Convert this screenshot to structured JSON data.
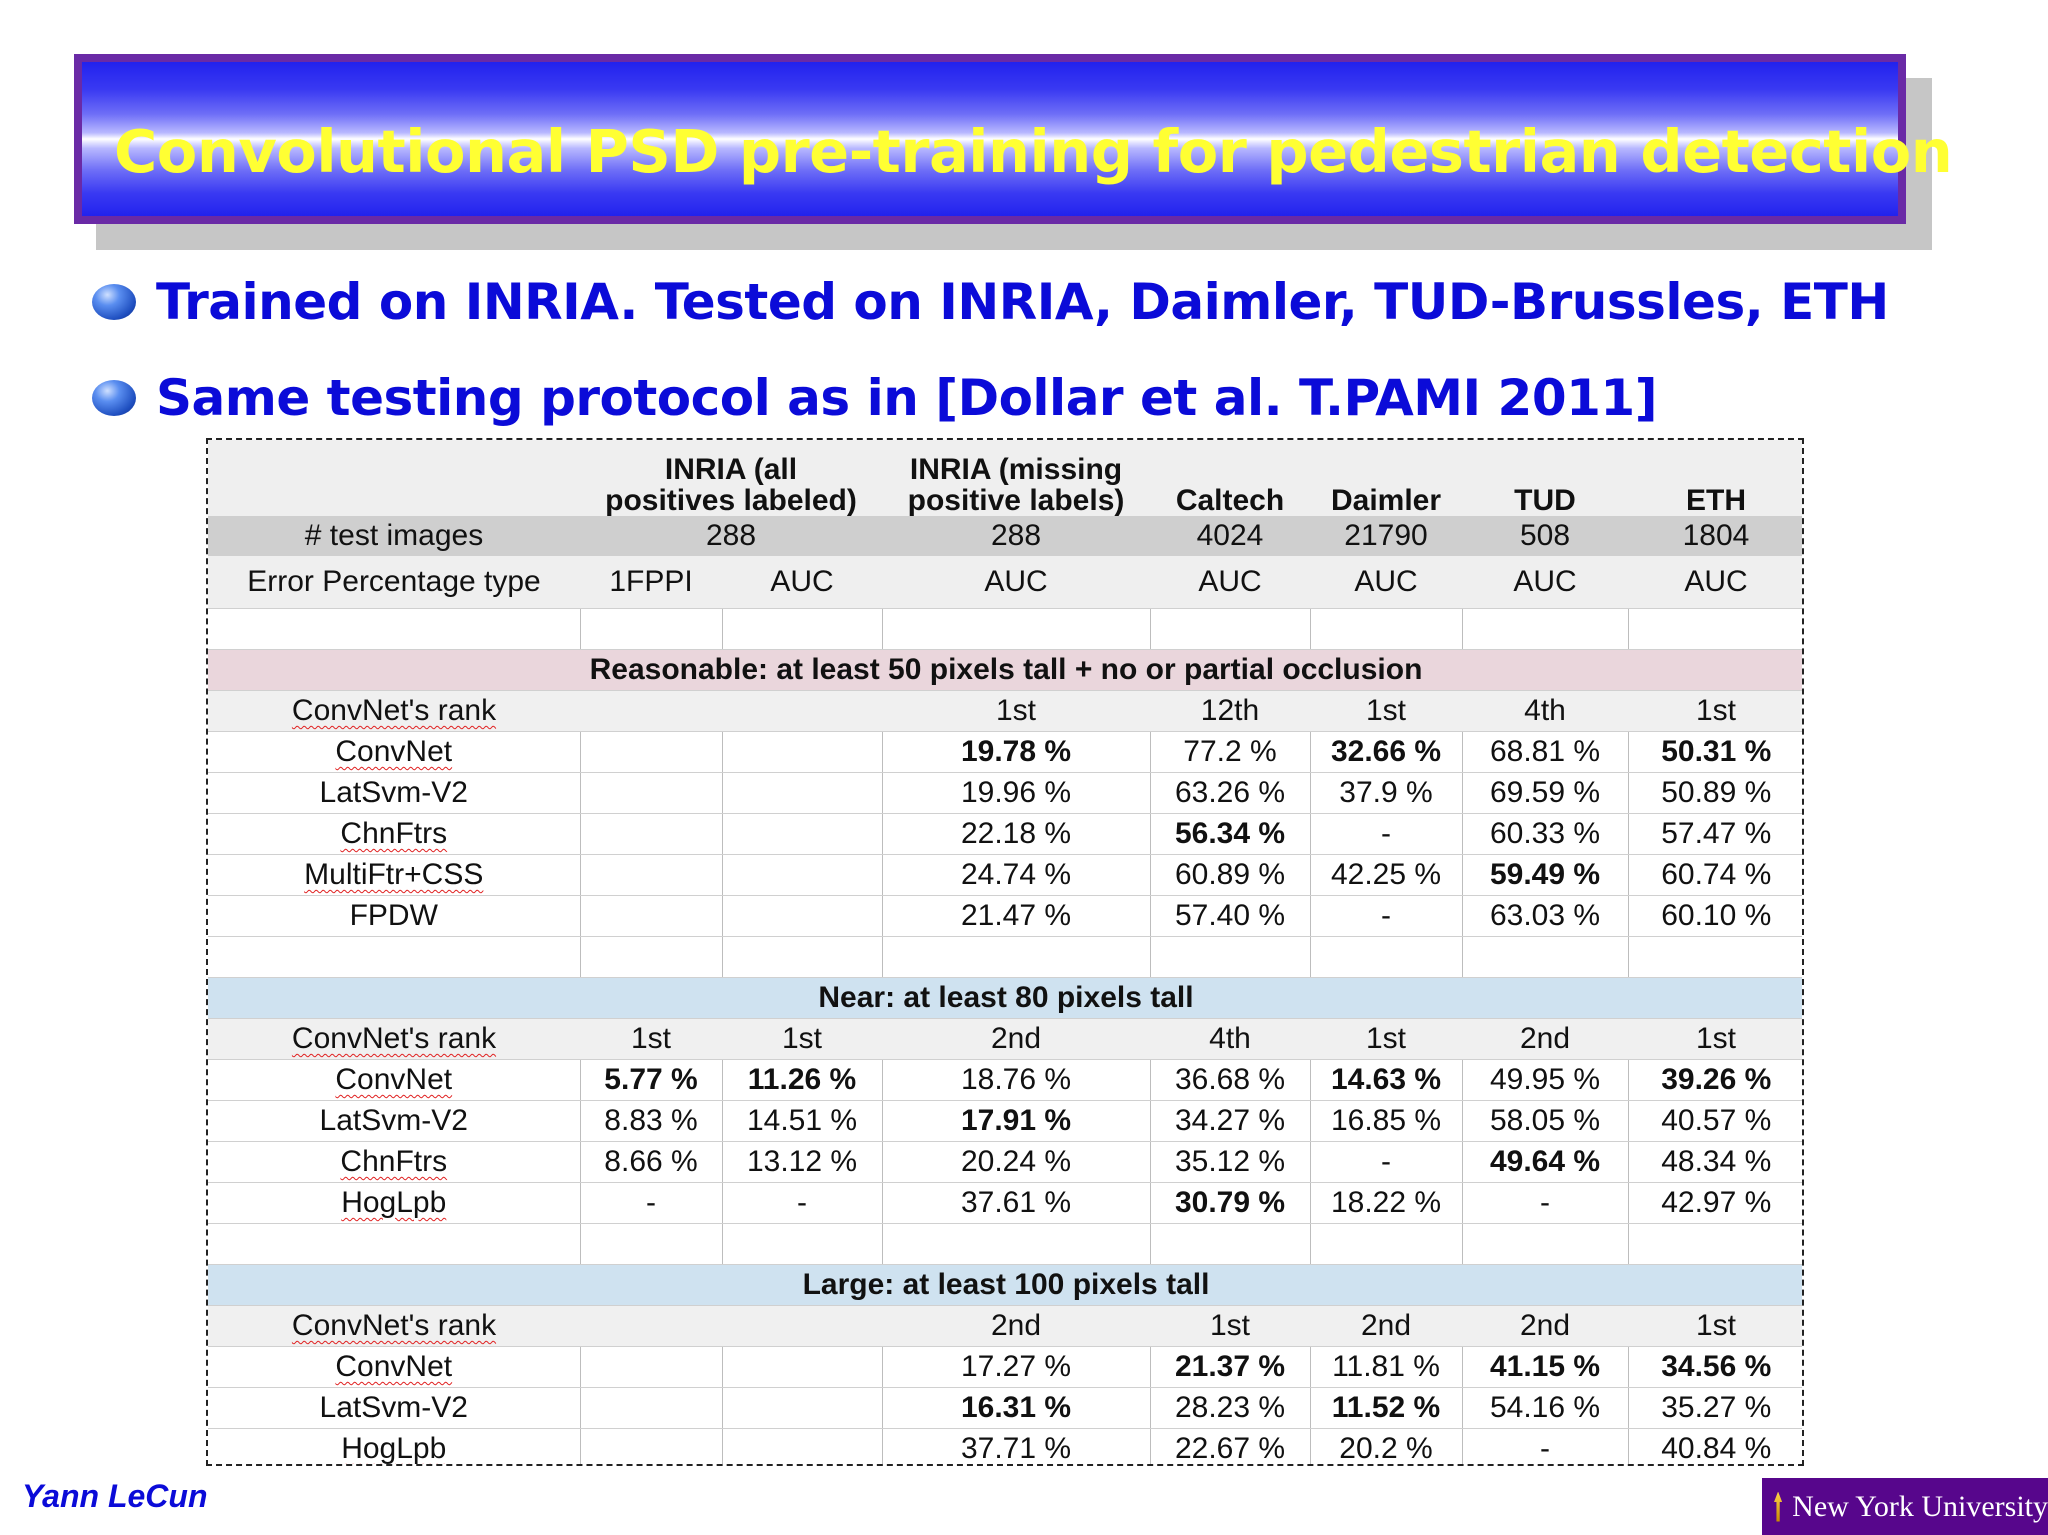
{
  "slide": {
    "title": "Convolutional PSD pre-training for pedestrian detection",
    "bullets": [
      "Trained on INRIA. Tested on INRIA, Daimler, TUD-Brussles, ETH",
      "Same testing protocol as in [Dollar et al. T.PAMI 2011]"
    ]
  },
  "table": {
    "headers": [
      "INRIA (all",
      "positives labeled)",
      "INRIA (missing",
      "positive labels)",
      "Caltech",
      "Daimler",
      "TUD",
      "ETH"
    ],
    "test_images": {
      "label": "# test images",
      "values": [
        "288",
        "288",
        "4024",
        "21790",
        "508",
        "1804"
      ]
    },
    "error_type": {
      "label": "Error Percentage type",
      "values": [
        "1FPPI",
        "AUC",
        "AUC",
        "AUC",
        "AUC",
        "AUC",
        "AUC"
      ]
    },
    "sections": [
      {
        "title": "Reasonable: at least 50 pixels tall + no or partial occlusion",
        "rank": [
          "ConvNet's rank",
          "",
          "",
          "1st",
          "12th",
          "1st",
          "4th",
          "1st"
        ],
        "rows": [
          [
            "ConvNet",
            "",
            "",
            "19.78 %",
            "77.2 %",
            "32.66 %",
            "68.81 %",
            "50.31 %"
          ],
          [
            "LatSvm-V2",
            "",
            "",
            "19.96 %",
            "63.26 %",
            "37.9 %",
            "69.59 %",
            "50.89 %"
          ],
          [
            "ChnFtrs",
            "",
            "",
            "22.18 %",
            "56.34 %",
            "-",
            "60.33 %",
            "57.47 %"
          ],
          [
            "MultiFtr+CSS",
            "",
            "",
            "24.74 %",
            "60.89 %",
            "42.25 %",
            "59.49 %",
            "60.74 %"
          ],
          [
            "FPDW",
            "",
            "",
            "21.47 %",
            "57.40 %",
            "-",
            "63.03 %",
            "60.10 %"
          ]
        ]
      },
      {
        "title": "Near: at least 80 pixels tall",
        "rank": [
          "ConvNet's rank",
          "1st",
          "1st",
          "2nd",
          "4th",
          "1st",
          "2nd",
          "1st"
        ],
        "rows": [
          [
            "ConvNet",
            "5.77 %",
            "11.26 %",
            "18.76 %",
            "36.68 %",
            "14.63 %",
            "49.95 %",
            "39.26 %"
          ],
          [
            "LatSvm-V2",
            "8.83 %",
            "14.51 %",
            "17.91 %",
            "34.27 %",
            "16.85 %",
            "58.05 %",
            "40.57 %"
          ],
          [
            "ChnFtrs",
            "8.66 %",
            "13.12 %",
            "20.24 %",
            "35.12 %",
            "-",
            "49.64 %",
            "48.34 %"
          ],
          [
            "HogLpb",
            "-",
            "-",
            "37.61 %",
            "30.79 %",
            "18.22 %",
            "-",
            "42.97 %"
          ]
        ]
      },
      {
        "title": "Large: at least 100 pixels tall",
        "rank": [
          "ConvNet's rank",
          "",
          "",
          "2nd",
          "1st",
          "2nd",
          "2nd",
          "1st"
        ],
        "rows": [
          [
            "ConvNet",
            "",
            "",
            "17.27 %",
            "21.37 %",
            "11.81 %",
            "41.15 %",
            "34.56 %"
          ],
          [
            "LatSvm-V2",
            "",
            "",
            "16.31 %",
            "28.23 %",
            "11.52 %",
            "54.16 %",
            "35.27 %"
          ],
          [
            "HogLpb",
            "",
            "",
            "37.71 %",
            "22.67 %",
            "20.2 %",
            "-",
            "40.84 %"
          ]
        ]
      }
    ]
  },
  "footer": {
    "author": "Yann LeCun",
    "institution": "New York University"
  }
}
